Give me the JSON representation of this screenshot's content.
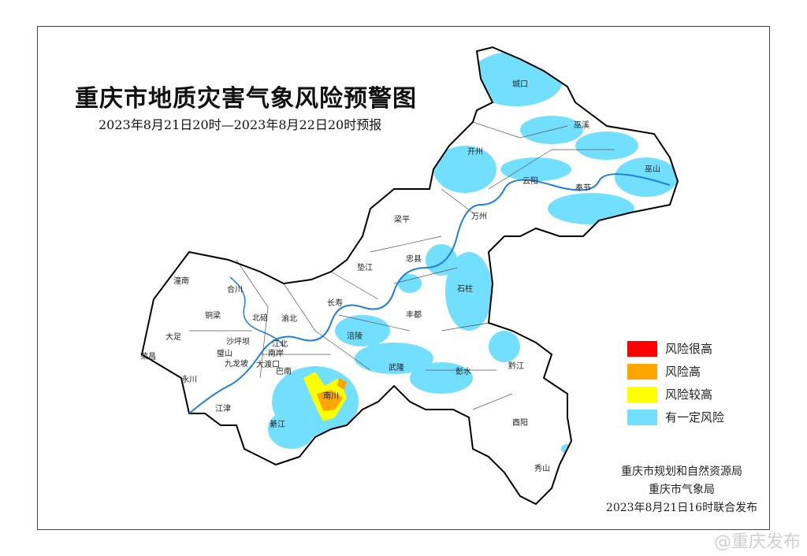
{
  "title": "重庆市地质灾害气象风险预警图",
  "subtitle": "2023年8月21日20时—2023年8月22日20时预报",
  "legend": [
    {
      "label": "风险很高",
      "color": "#ff0000"
    },
    {
      "label": "风险高",
      "color": "#ffa500"
    },
    {
      "label": "风险较高",
      "color": "#ffff00"
    },
    {
      "label": "有一定风险",
      "color": "#73dffe"
    }
  ],
  "districts": [
    "城口",
    "巫溪",
    "开州",
    "云阳",
    "奉节",
    "巫山",
    "梁平",
    "万州",
    "忠县",
    "垫江",
    "石柱",
    "长寿",
    "丰都",
    "涪陵",
    "武隆",
    "彭水",
    "黔江",
    "酉阳",
    "秀山",
    "南川",
    "綦江",
    "巴南",
    "江津",
    "永川",
    "荣昌",
    "大足",
    "铜梁",
    "潼南",
    "合川",
    "北碚",
    "渝北",
    "沙坪坝",
    "江北",
    "南岸",
    "九龙坡",
    "大渡口",
    "璧山"
  ],
  "footer": {
    "line1": "重庆市规划和自然资源局",
    "line2": "重庆市气象局",
    "line3": "2023年8月21日16时联合发布"
  },
  "watermark": "@重庆发布",
  "colors": {
    "river": "#1e7fe0",
    "border": "#000000"
  }
}
